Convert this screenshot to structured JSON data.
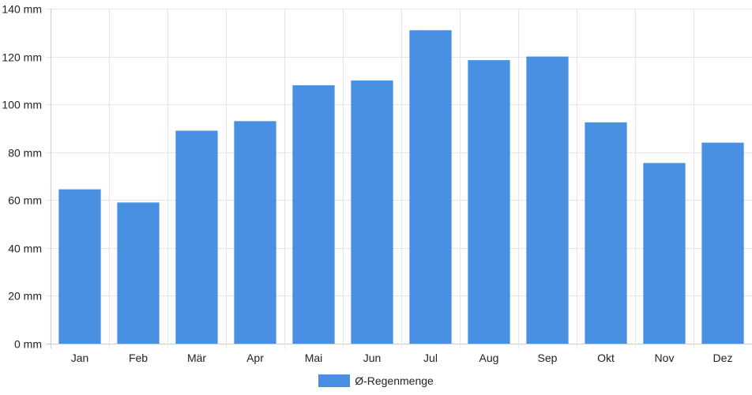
{
  "colors": {
    "bar": "#4A90E2",
    "grid": "#e5e5e5",
    "axis": "#cccccc"
  },
  "chart_data": {
    "type": "bar",
    "categories": [
      "Jan",
      "Feb",
      "Mär",
      "Apr",
      "Mai",
      "Jun",
      "Jul",
      "Aug",
      "Sep",
      "Okt",
      "Nov",
      "Dez"
    ],
    "series": [
      {
        "name": "Ø-Regenmenge",
        "values": [
          64.5,
          59,
          89,
          93,
          108,
          110,
          131,
          118.5,
          120,
          92.5,
          75.5,
          84
        ]
      }
    ],
    "y_ticks": [
      "0 mm",
      "20 mm",
      "40 mm",
      "60 mm",
      "80 mm",
      "100 mm",
      "120 mm",
      "140 mm"
    ],
    "ylim": [
      0,
      140
    ],
    "grid": true,
    "legend_position": "bottom"
  }
}
